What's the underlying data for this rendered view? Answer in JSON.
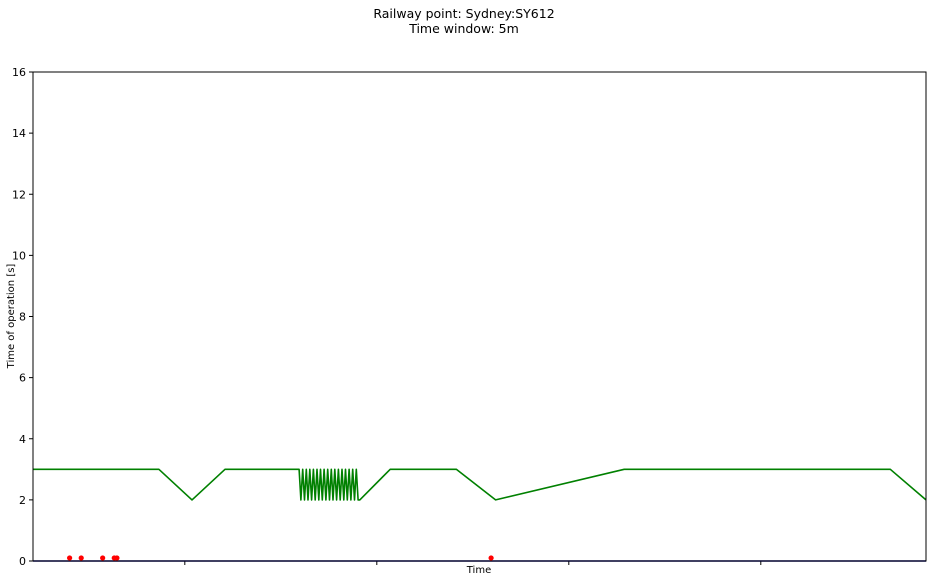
{
  "chart_data": {
    "type": "line",
    "title": "Railway point: Sydney:SY612",
    "subtitle": "Time window: 5m",
    "xlabel": "Time",
    "ylabel": "Time of operation [s]",
    "ylim": [
      0,
      16
    ],
    "yticks": [
      0,
      2,
      4,
      6,
      8,
      10,
      12,
      14,
      16
    ],
    "xlim": [
      0,
      1
    ],
    "xtick_positions": [
      0.17,
      0.385,
      0.6,
      0.815
    ],
    "grid": false,
    "series": [
      {
        "color": "#008000",
        "x": [
          0,
          0.141,
          0.178,
          0.215,
          0.298,
          0.3,
          0.302,
          0.304,
          0.306,
          0.308,
          0.31,
          0.312,
          0.314,
          0.316,
          0.318,
          0.32,
          0.322,
          0.324,
          0.326,
          0.328,
          0.33,
          0.332,
          0.334,
          0.336,
          0.338,
          0.34,
          0.342,
          0.344,
          0.346,
          0.348,
          0.35,
          0.352,
          0.354,
          0.356,
          0.358,
          0.36,
          0.362,
          0.364,
          0.366,
          0.4,
          0.474,
          0.518,
          0.662,
          0.96,
          1.0
        ],
        "y": [
          3,
          3,
          2,
          3,
          3,
          2,
          3,
          2,
          3,
          2,
          3,
          2,
          3,
          2,
          3,
          2,
          3,
          2,
          3,
          2,
          3,
          2,
          3,
          2,
          3,
          2,
          3,
          2,
          3,
          2,
          3,
          2,
          3,
          2,
          3,
          2,
          3,
          2,
          2,
          3,
          3,
          2,
          3,
          3,
          2
        ]
      },
      {
        "color": "#00008b",
        "x": [
          0,
          1
        ],
        "y": [
          0,
          0
        ]
      }
    ],
    "markers": {
      "color": "#ff0000",
      "x": [
        0.041,
        0.054,
        0.078,
        0.091,
        0.094,
        0.513
      ],
      "y": [
        0.1,
        0.1,
        0.1,
        0.1,
        0.1,
        0.1
      ]
    }
  }
}
